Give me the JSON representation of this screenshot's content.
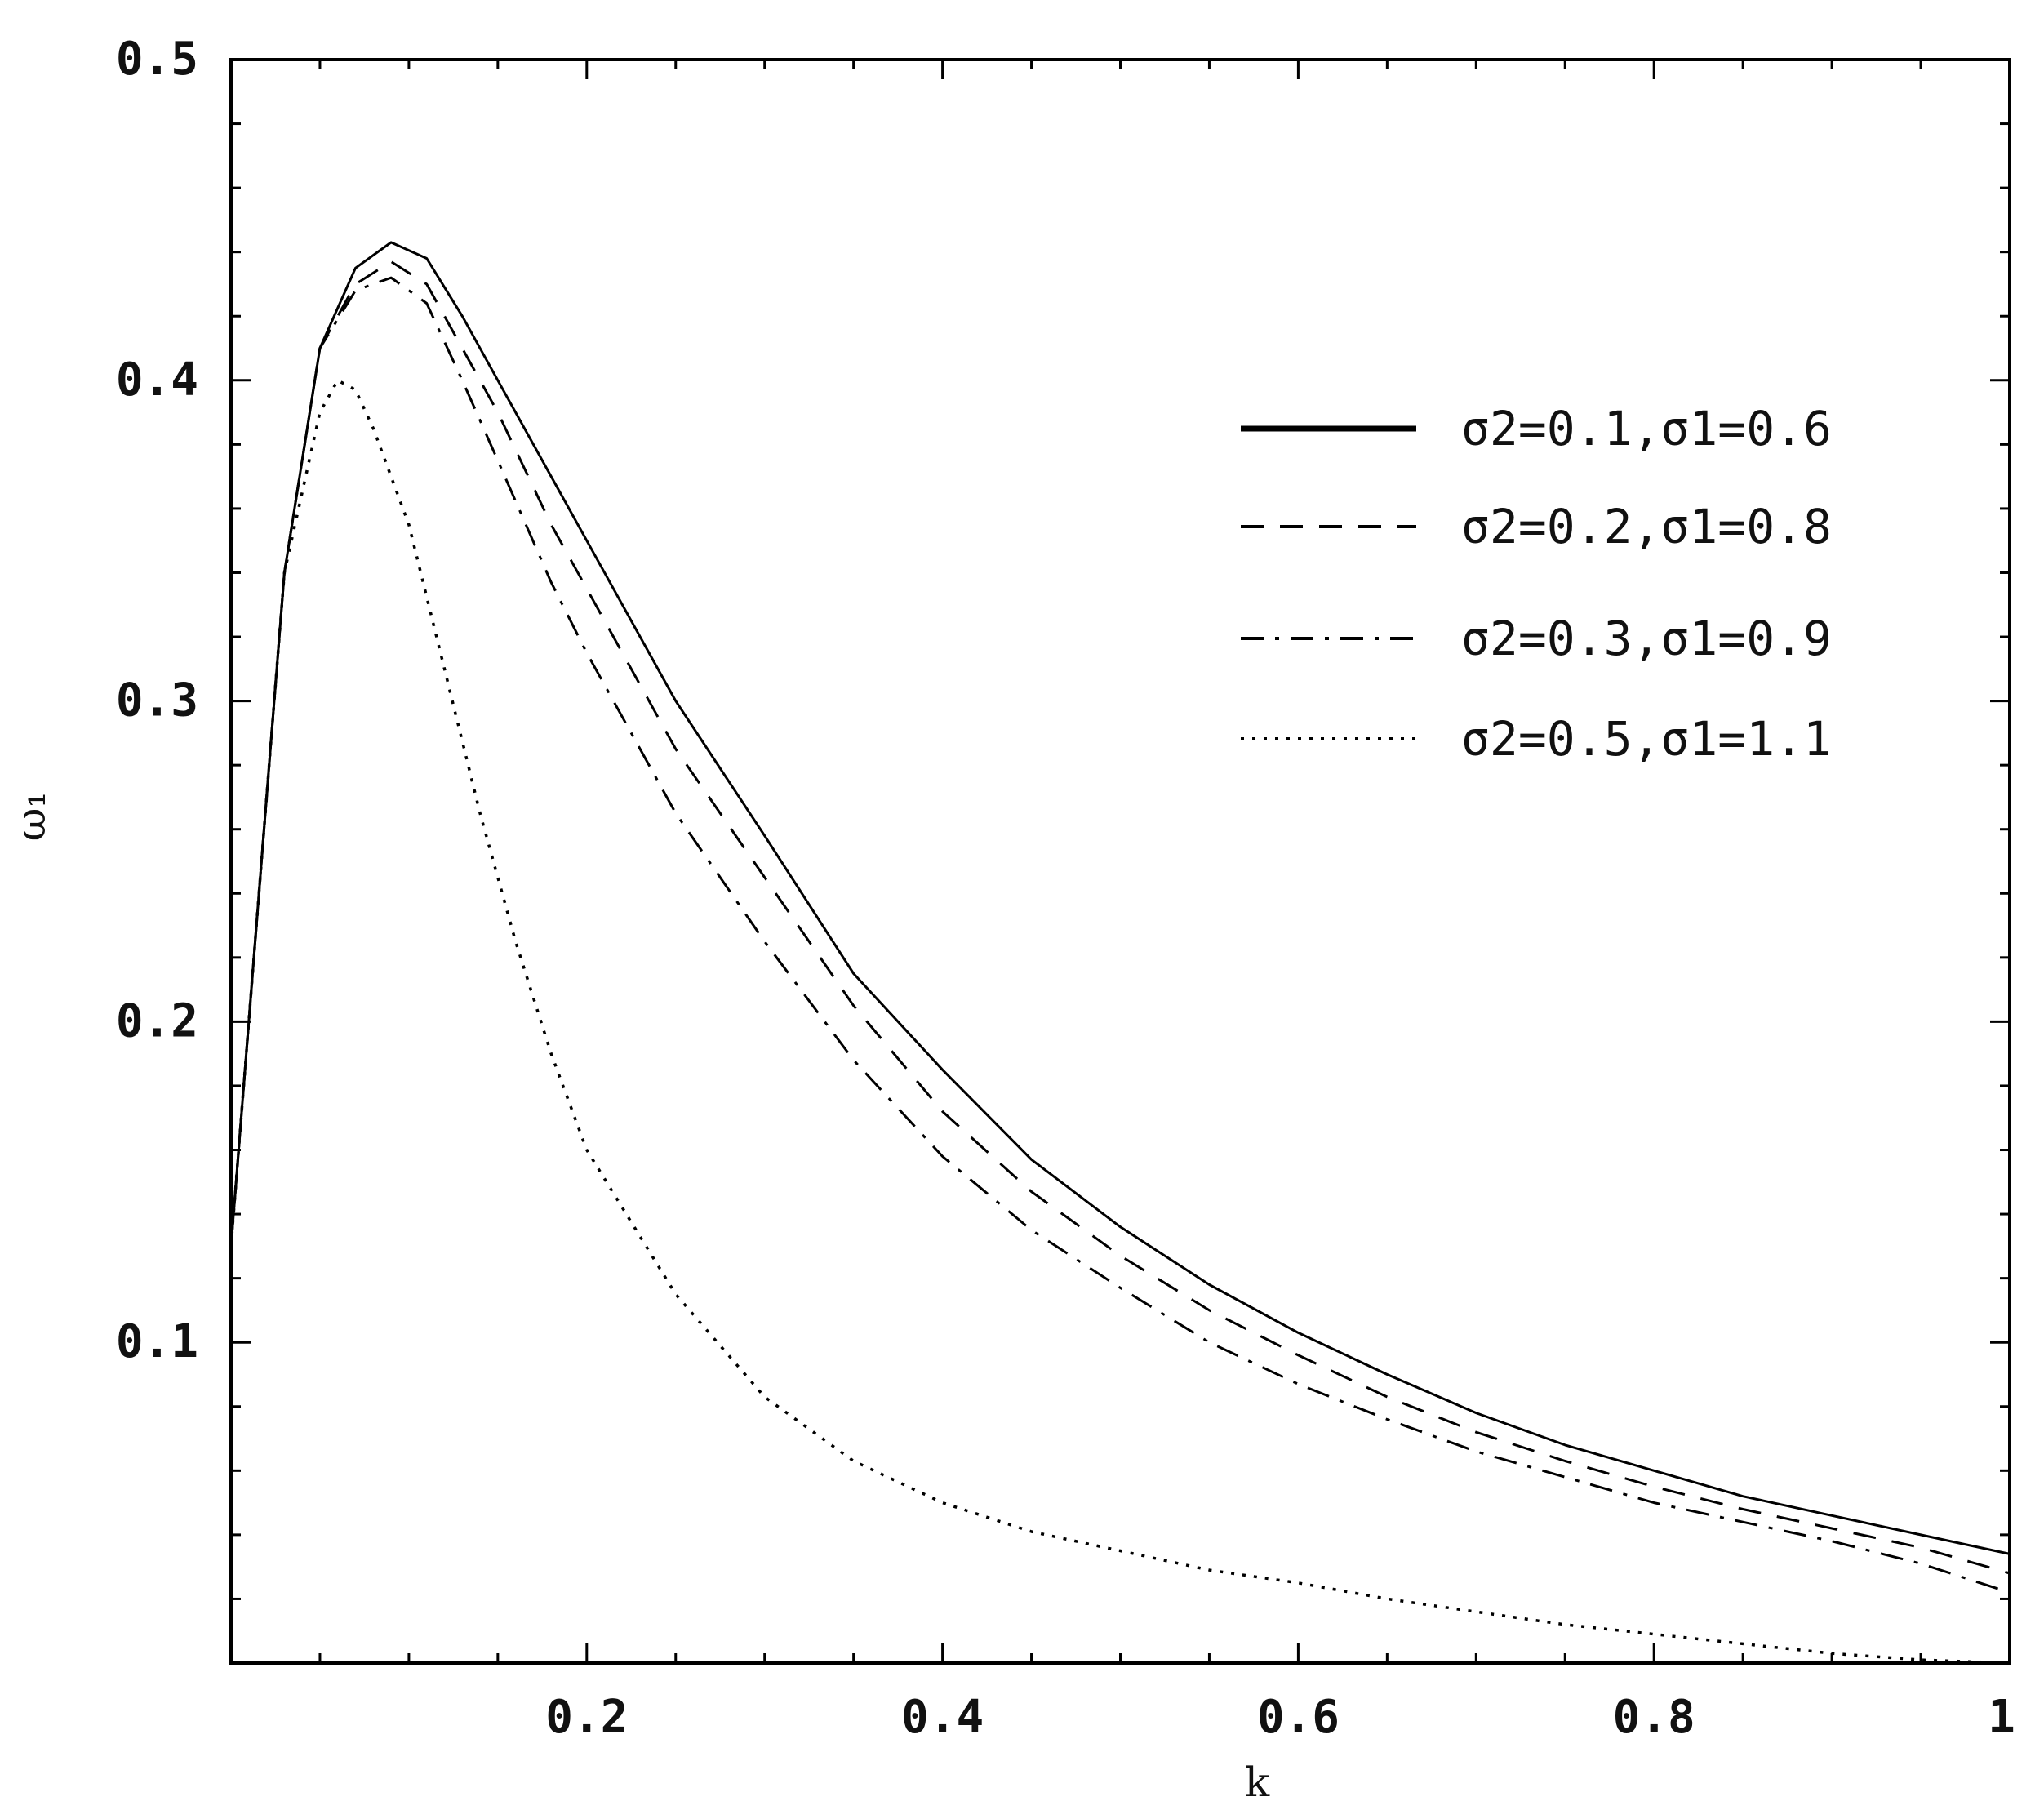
{
  "chart_data": {
    "type": "line",
    "xlabel": "k",
    "ylabel": "ω₁",
    "xlim": [
      0,
      1
    ],
    "ylim": [
      0,
      0.5
    ],
    "grid": false,
    "legend_position": "top-right",
    "x_ticks": [
      {
        "value": 0.2,
        "label": "0.2"
      },
      {
        "value": 0.4,
        "label": "0.4"
      },
      {
        "value": 0.6,
        "label": "0.6"
      },
      {
        "value": 0.8,
        "label": "0.8"
      },
      {
        "value": 1.0,
        "label": "1"
      }
    ],
    "y_ticks": [
      {
        "value": 0.1,
        "label": "0.1"
      },
      {
        "value": 0.2,
        "label": "0.2"
      },
      {
        "value": 0.3,
        "label": "0.3"
      },
      {
        "value": 0.4,
        "label": "0.4"
      },
      {
        "value": 0.5,
        "label": "0.5"
      }
    ],
    "series": [
      {
        "name": "σ2=0.1,σ1=0.6",
        "style": "solid",
        "color": "#000000",
        "x": [
          0.0,
          0.01,
          0.03,
          0.05,
          0.07,
          0.09,
          0.11,
          0.13,
          0.15,
          0.18,
          0.2,
          0.25,
          0.3,
          0.35,
          0.4,
          0.45,
          0.5,
          0.55,
          0.6,
          0.65,
          0.7,
          0.75,
          0.8,
          0.85,
          0.9,
          0.95,
          1.0
        ],
        "y": [
          0.13,
          0.2,
          0.34,
          0.41,
          0.435,
          0.443,
          0.438,
          0.42,
          0.4,
          0.37,
          0.35,
          0.3,
          0.258,
          0.215,
          0.185,
          0.157,
          0.136,
          0.118,
          0.103,
          0.09,
          0.078,
          0.068,
          0.06,
          0.052,
          0.046,
          0.04,
          0.034
        ]
      },
      {
        "name": "σ2=0.2,σ1=0.8",
        "style": "dashed",
        "color": "#000000",
        "x": [
          0.0,
          0.01,
          0.03,
          0.05,
          0.07,
          0.09,
          0.11,
          0.13,
          0.15,
          0.18,
          0.2,
          0.25,
          0.3,
          0.35,
          0.4,
          0.45,
          0.5,
          0.55,
          0.6,
          0.65,
          0.7,
          0.75,
          0.8,
          0.85,
          0.9,
          0.95,
          1.0
        ],
        "y": [
          0.13,
          0.2,
          0.34,
          0.41,
          0.43,
          0.437,
          0.43,
          0.41,
          0.39,
          0.355,
          0.335,
          0.285,
          0.245,
          0.205,
          0.172,
          0.147,
          0.127,
          0.11,
          0.096,
          0.083,
          0.072,
          0.063,
          0.055,
          0.048,
          0.042,
          0.036,
          0.028
        ]
      },
      {
        "name": "σ2=0.3,σ1=0.9",
        "style": "dashdot",
        "color": "#000000",
        "x": [
          0.0,
          0.01,
          0.03,
          0.05,
          0.07,
          0.09,
          0.11,
          0.13,
          0.15,
          0.18,
          0.2,
          0.25,
          0.3,
          0.35,
          0.4,
          0.45,
          0.5,
          0.55,
          0.6,
          0.65,
          0.7,
          0.75,
          0.8,
          0.85,
          0.9,
          0.95,
          1.0
        ],
        "y": [
          0.13,
          0.2,
          0.34,
          0.41,
          0.428,
          0.432,
          0.424,
          0.4,
          0.375,
          0.337,
          0.315,
          0.265,
          0.225,
          0.188,
          0.158,
          0.135,
          0.117,
          0.1,
          0.087,
          0.076,
          0.066,
          0.058,
          0.05,
          0.044,
          0.038,
          0.031,
          0.022
        ]
      },
      {
        "name": "σ2=0.5,σ1=1.1",
        "style": "dotted",
        "color": "#000000",
        "x": [
          0.0,
          0.01,
          0.03,
          0.05,
          0.06,
          0.07,
          0.08,
          0.1,
          0.12,
          0.14,
          0.16,
          0.18,
          0.2,
          0.25,
          0.3,
          0.35,
          0.4,
          0.45,
          0.5,
          0.55,
          0.6,
          0.65,
          0.7,
          0.75,
          0.8,
          0.85,
          0.9,
          0.95,
          1.0
        ],
        "y": [
          0.13,
          0.2,
          0.34,
          0.39,
          0.4,
          0.397,
          0.385,
          0.355,
          0.31,
          0.265,
          0.225,
          0.19,
          0.16,
          0.115,
          0.083,
          0.063,
          0.05,
          0.041,
          0.035,
          0.029,
          0.025,
          0.02,
          0.016,
          0.012,
          0.009,
          0.006,
          0.003,
          0.001,
          0.0
        ]
      }
    ]
  }
}
